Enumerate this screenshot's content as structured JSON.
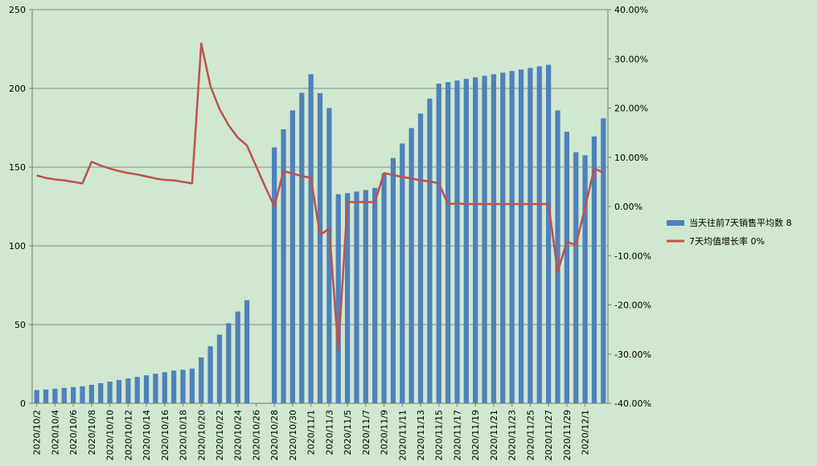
{
  "chart_data": {
    "type": "bar",
    "x_tick_labels": [
      "2020/10/2",
      "2020/10/4",
      "2020/10/6",
      "2020/10/8",
      "2020/10/10",
      "2020/10/12",
      "2020/10/14",
      "2020/10/16",
      "2020/10/18",
      "2020/10/20",
      "2020/10/22",
      "2020/10/24",
      "2020/10/26",
      "2020/10/28",
      "2020/10/30",
      "2020/11/1",
      "2020/11/3",
      "2020/11/5",
      "2020/11/7",
      "2020/11/9",
      "2020/11/11",
      "2020/11/13",
      "2020/11/15",
      "2020/11/17",
      "2020/11/19",
      "2020/11/21",
      "2020/11/23",
      "2020/11/25",
      "2020/11/27",
      "2020/11/29",
      "2020/12/1"
    ],
    "left_axis": {
      "min": 0,
      "max": 250,
      "ticks": [
        0,
        50,
        100,
        150,
        200,
        250
      ]
    },
    "right_axis": {
      "min": -0.4,
      "max": 0.4,
      "ticks": [
        "-40.00%",
        "-30.00%",
        "-20.00%",
        "-10.00%",
        "0.00%",
        "10.00%",
        "20.00%",
        "30.00%",
        "40.00%"
      ]
    },
    "grid": true,
    "legend_position": "right",
    "series": [
      {
        "name": "当天往前7天销售平均数 8",
        "type": "bar",
        "axis": "left",
        "color": "#4f81bd",
        "values": [
          8.4,
          8.8,
          9.3,
          9.8,
          10.3,
          10.8,
          11.8,
          12.8,
          13.8,
          14.8,
          15.8,
          16.8,
          17.8,
          18.8,
          19.8,
          20.8,
          21.3,
          22.1,
          29.2,
          36.3,
          43.6,
          50.9,
          58.3,
          65.5,
          null,
          null,
          162.5,
          174.0,
          186.0,
          197.2,
          209.0,
          197.0,
          187.5,
          132.8,
          133.5,
          134.5,
          135.5,
          136.8,
          146.0,
          155.8,
          165.0,
          174.8,
          184.0,
          193.5,
          203.0,
          204.0,
          205.0,
          206.0,
          207.0,
          208.0,
          209.0,
          210.0,
          211.0,
          212.0,
          213.0,
          214.0,
          215.0,
          186.0,
          172.5,
          159.5,
          157.5,
          169.5,
          181.0
        ]
      },
      {
        "name": "7天均值增长率 0%",
        "type": "line",
        "axis": "right",
        "color": "#c0504d",
        "values": [
          0.063,
          0.058,
          0.055,
          0.053,
          0.05,
          0.047,
          0.091,
          0.083,
          0.077,
          0.072,
          0.068,
          0.065,
          0.061,
          0.057,
          0.054,
          0.053,
          0.05,
          0.047,
          0.331,
          0.245,
          0.198,
          0.165,
          0.14,
          0.124,
          0.082,
          0.04,
          0.0,
          0.072,
          0.067,
          0.062,
          0.058,
          -0.058,
          -0.045,
          -0.293,
          0.009,
          0.009,
          0.009,
          0.009,
          0.068,
          0.064,
          0.06,
          0.057,
          0.053,
          0.051,
          0.047,
          0.005,
          0.006,
          0.005,
          0.005,
          0.005,
          0.005,
          0.005,
          0.005,
          0.005,
          0.005,
          0.005,
          0.005,
          -0.133,
          -0.072,
          -0.078,
          -0.002,
          0.077,
          0.069
        ]
      }
    ]
  }
}
